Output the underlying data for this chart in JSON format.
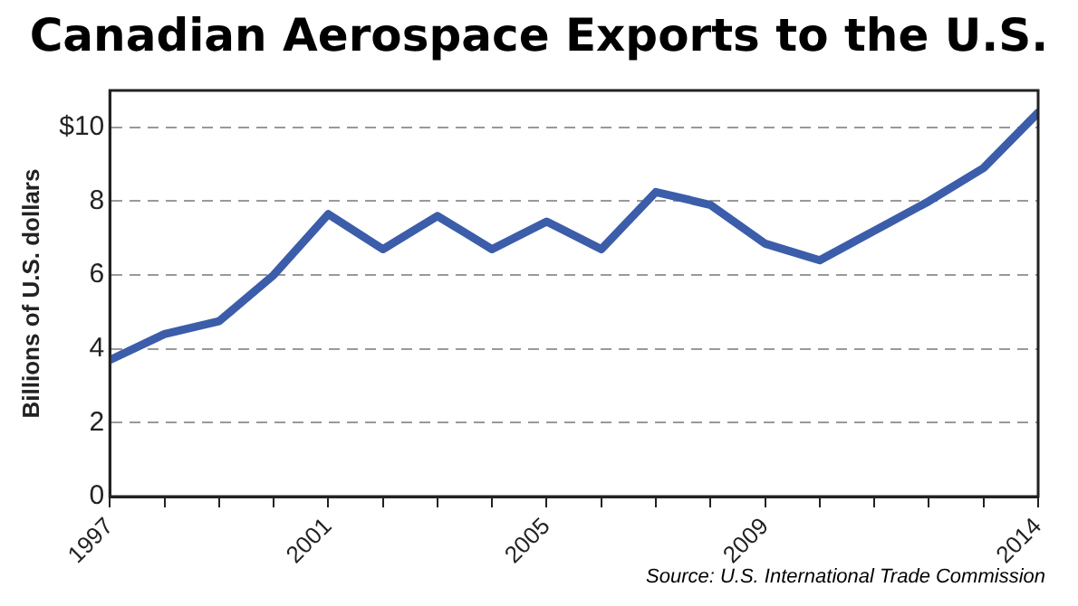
{
  "chart_data": {
    "type": "line",
    "title": "Canadian Aerospace Exports to the U.S.",
    "ylabel": "Billions of U.S. dollars",
    "x": [
      1997,
      1998,
      1999,
      2000,
      2001,
      2002,
      2003,
      2004,
      2005,
      2006,
      2007,
      2008,
      2009,
      2010,
      2011,
      2012,
      2013,
      2014
    ],
    "series": [
      {
        "color": "#3c5daa",
        "values": [
          3.7,
          4.4,
          4.75,
          6.0,
          7.65,
          6.7,
          7.6,
          6.7,
          7.45,
          6.7,
          8.25,
          7.9,
          6.85,
          6.4,
          7.2,
          8.0,
          8.9,
          10.4
        ]
      }
    ],
    "xlim": [
      1997,
      2014
    ],
    "xticks": [
      1997,
      {
        "value": 1998,
        "label": null
      },
      {
        "value": 1999,
        "label": null
      },
      {
        "value": 2000,
        "label": null
      },
      2001,
      {
        "value": 2002,
        "label": null
      },
      {
        "value": 2003,
        "label": null
      },
      {
        "value": 2004,
        "label": null
      },
      2005,
      {
        "value": 2006,
        "label": null
      },
      {
        "value": 2007,
        "label": null
      },
      {
        "value": 2008,
        "label": null
      },
      2009,
      {
        "value": 2010,
        "label": null
      },
      {
        "value": 2011,
        "label": null
      },
      {
        "value": 2012,
        "label": null
      },
      {
        "value": 2013,
        "label": null
      },
      2014
    ],
    "ylim": [
      0,
      11
    ],
    "yticks": [
      0,
      2,
      4,
      6,
      8,
      {
        "value": 10,
        "label": "$10"
      }
    ],
    "grid": "y",
    "line_style": "solid",
    "marker": "none",
    "annotations": [
      "Source: U.S. International Trade Commission"
    ]
  }
}
